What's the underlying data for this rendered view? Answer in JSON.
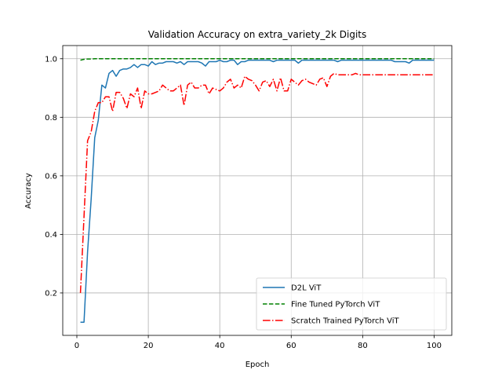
{
  "chart_data": {
    "type": "line",
    "title": "Validation Accuracy on extra_variety_2k Digits",
    "xlabel": "Epoch",
    "ylabel": "Accuracy",
    "xlim": [
      -3.95,
      104.95
    ],
    "ylim": [
      0.055,
      1.045
    ],
    "xticks": [
      0,
      20,
      40,
      60,
      80,
      100
    ],
    "yticks": [
      0.2,
      0.4,
      0.6,
      0.8,
      1.0
    ],
    "xtick_labels": [
      "0",
      "20",
      "40",
      "60",
      "80",
      "100"
    ],
    "ytick_labels": [
      "0.2",
      "0.4",
      "0.6",
      "0.8",
      "1.0"
    ],
    "grid": true,
    "legend_position": "lower-right",
    "series": [
      {
        "name": "D2L ViT",
        "color": "#1f77b4",
        "dash": "solid",
        "x": [
          1,
          2,
          3,
          4,
          5,
          6,
          7,
          8,
          9,
          10,
          11,
          12,
          13,
          14,
          15,
          16,
          17,
          18,
          19,
          20,
          21,
          22,
          23,
          24,
          25,
          26,
          27,
          28,
          29,
          30,
          31,
          32,
          33,
          34,
          35,
          36,
          37,
          38,
          39,
          40,
          41,
          42,
          43,
          44,
          45,
          46,
          47,
          48,
          49,
          50,
          51,
          52,
          53,
          54,
          55,
          56,
          57,
          58,
          59,
          60,
          61,
          62,
          63,
          64,
          65,
          66,
          67,
          68,
          69,
          70,
          71,
          72,
          73,
          74,
          75,
          76,
          77,
          78,
          79,
          80,
          81,
          82,
          83,
          84,
          85,
          86,
          87,
          88,
          89,
          90,
          91,
          92,
          93,
          94,
          95,
          96,
          97,
          98,
          99,
          100
        ],
        "values": [
          0.1,
          0.1,
          0.34,
          0.52,
          0.73,
          0.79,
          0.91,
          0.9,
          0.95,
          0.96,
          0.94,
          0.96,
          0.965,
          0.965,
          0.97,
          0.98,
          0.97,
          0.98,
          0.98,
          0.975,
          0.99,
          0.98,
          0.985,
          0.985,
          0.99,
          0.99,
          0.99,
          0.985,
          0.99,
          0.98,
          0.99,
          0.99,
          0.99,
          0.99,
          0.985,
          0.975,
          0.99,
          0.99,
          0.99,
          0.995,
          0.99,
          0.99,
          0.995,
          0.995,
          0.98,
          0.99,
          0.99,
          0.995,
          0.995,
          0.995,
          0.995,
          0.995,
          0.995,
          0.995,
          0.99,
          0.995,
          0.995,
          0.995,
          0.995,
          0.995,
          0.995,
          0.985,
          0.995,
          0.995,
          0.995,
          0.995,
          0.995,
          0.995,
          0.995,
          0.995,
          0.995,
          0.995,
          0.99,
          0.995,
          0.995,
          0.995,
          0.995,
          0.995,
          0.995,
          0.995,
          0.995,
          0.995,
          0.995,
          0.995,
          0.995,
          0.995,
          0.995,
          0.995,
          0.99,
          0.99,
          0.99,
          0.99,
          0.985,
          0.995,
          0.995,
          0.995,
          0.995,
          0.995,
          0.995,
          0.995
        ]
      },
      {
        "name": "Fine Tuned PyTorch ViT",
        "color": "#008000",
        "dash": "dashed",
        "x": [
          1,
          2,
          3,
          4,
          5,
          6,
          7,
          8,
          9,
          10,
          11,
          12,
          13,
          14,
          15,
          16,
          17,
          18,
          19,
          20,
          21,
          22,
          23,
          24,
          25,
          26,
          27,
          28,
          29,
          30,
          31,
          32,
          33,
          34,
          35,
          36,
          37,
          38,
          39,
          40,
          41,
          42,
          43,
          44,
          45,
          46,
          47,
          48,
          49,
          50,
          51,
          52,
          53,
          54,
          55,
          56,
          57,
          58,
          59,
          60,
          61,
          62,
          63,
          64,
          65,
          66,
          67,
          68,
          69,
          70,
          71,
          72,
          73,
          74,
          75,
          76,
          77,
          78,
          79,
          80,
          81,
          82,
          83,
          84,
          85,
          86,
          87,
          88,
          89,
          90,
          91,
          92,
          93,
          94,
          95,
          96,
          97,
          98,
          99,
          100
        ],
        "values": [
          0.995,
          0.998,
          0.999,
          0.999,
          1.0,
          1.0,
          1.0,
          1.0,
          1.0,
          1.0,
          1.0,
          1.0,
          1.0,
          1.0,
          1.0,
          1.0,
          1.0,
          1.0,
          1.0,
          1.0,
          1.0,
          1.0,
          1.0,
          1.0,
          1.0,
          1.0,
          1.0,
          1.0,
          1.0,
          1.0,
          1.0,
          1.0,
          1.0,
          1.0,
          1.0,
          1.0,
          1.0,
          1.0,
          1.0,
          1.0,
          1.0,
          1.0,
          1.0,
          1.0,
          1.0,
          1.0,
          1.0,
          1.0,
          1.0,
          1.0,
          1.0,
          1.0,
          1.0,
          1.0,
          1.0,
          1.0,
          1.0,
          1.0,
          1.0,
          1.0,
          1.0,
          1.0,
          1.0,
          1.0,
          1.0,
          1.0,
          1.0,
          1.0,
          1.0,
          1.0,
          1.0,
          1.0,
          1.0,
          1.0,
          1.0,
          1.0,
          1.0,
          1.0,
          1.0,
          1.0,
          1.0,
          1.0,
          1.0,
          1.0,
          1.0,
          1.0,
          1.0,
          1.0,
          1.0,
          1.0,
          1.0,
          1.0,
          1.0,
          1.0,
          1.0,
          1.0,
          1.0,
          1.0,
          1.0,
          1.0
        ]
      },
      {
        "name": "Scratch Trained PyTorch ViT",
        "color": "#ff0000",
        "dash": "dashdot",
        "x": [
          1,
          2,
          3,
          4,
          5,
          6,
          7,
          8,
          9,
          10,
          11,
          12,
          13,
          14,
          15,
          16,
          17,
          18,
          19,
          20,
          21,
          22,
          23,
          24,
          25,
          26,
          27,
          28,
          29,
          30,
          31,
          32,
          33,
          34,
          35,
          36,
          37,
          38,
          39,
          40,
          41,
          42,
          43,
          44,
          45,
          46,
          47,
          48,
          49,
          50,
          51,
          52,
          53,
          54,
          55,
          56,
          57,
          58,
          59,
          60,
          61,
          62,
          63,
          64,
          65,
          66,
          67,
          68,
          69,
          70,
          71,
          72,
          73,
          74,
          75,
          76,
          77,
          78,
          79,
          80,
          81,
          82,
          83,
          84,
          85,
          86,
          87,
          88,
          89,
          90,
          91,
          92,
          93,
          94,
          95,
          96,
          97,
          98,
          99,
          100
        ],
        "values": [
          0.2,
          0.46,
          0.72,
          0.75,
          0.82,
          0.85,
          0.85,
          0.87,
          0.87,
          0.82,
          0.885,
          0.885,
          0.865,
          0.83,
          0.88,
          0.87,
          0.9,
          0.83,
          0.89,
          0.88,
          0.88,
          0.885,
          0.89,
          0.91,
          0.9,
          0.89,
          0.89,
          0.9,
          0.91,
          0.84,
          0.91,
          0.92,
          0.9,
          0.9,
          0.91,
          0.91,
          0.88,
          0.9,
          0.895,
          0.89,
          0.9,
          0.92,
          0.93,
          0.9,
          0.91,
          0.9,
          0.94,
          0.93,
          0.925,
          0.91,
          0.89,
          0.92,
          0.925,
          0.905,
          0.93,
          0.89,
          0.935,
          0.89,
          0.89,
          0.93,
          0.92,
          0.91,
          0.925,
          0.93,
          0.92,
          0.915,
          0.91,
          0.93,
          0.935,
          0.905,
          0.94,
          0.95,
          0.945,
          0.945,
          0.945,
          0.945,
          0.945,
          0.95,
          0.945,
          0.945,
          0.945,
          0.945,
          0.945,
          0.945,
          0.945,
          0.945,
          0.945,
          0.945,
          0.945,
          0.945,
          0.945,
          0.945,
          0.945,
          0.945,
          0.945,
          0.945,
          0.945,
          0.945,
          0.945,
          0.945
        ]
      }
    ]
  }
}
